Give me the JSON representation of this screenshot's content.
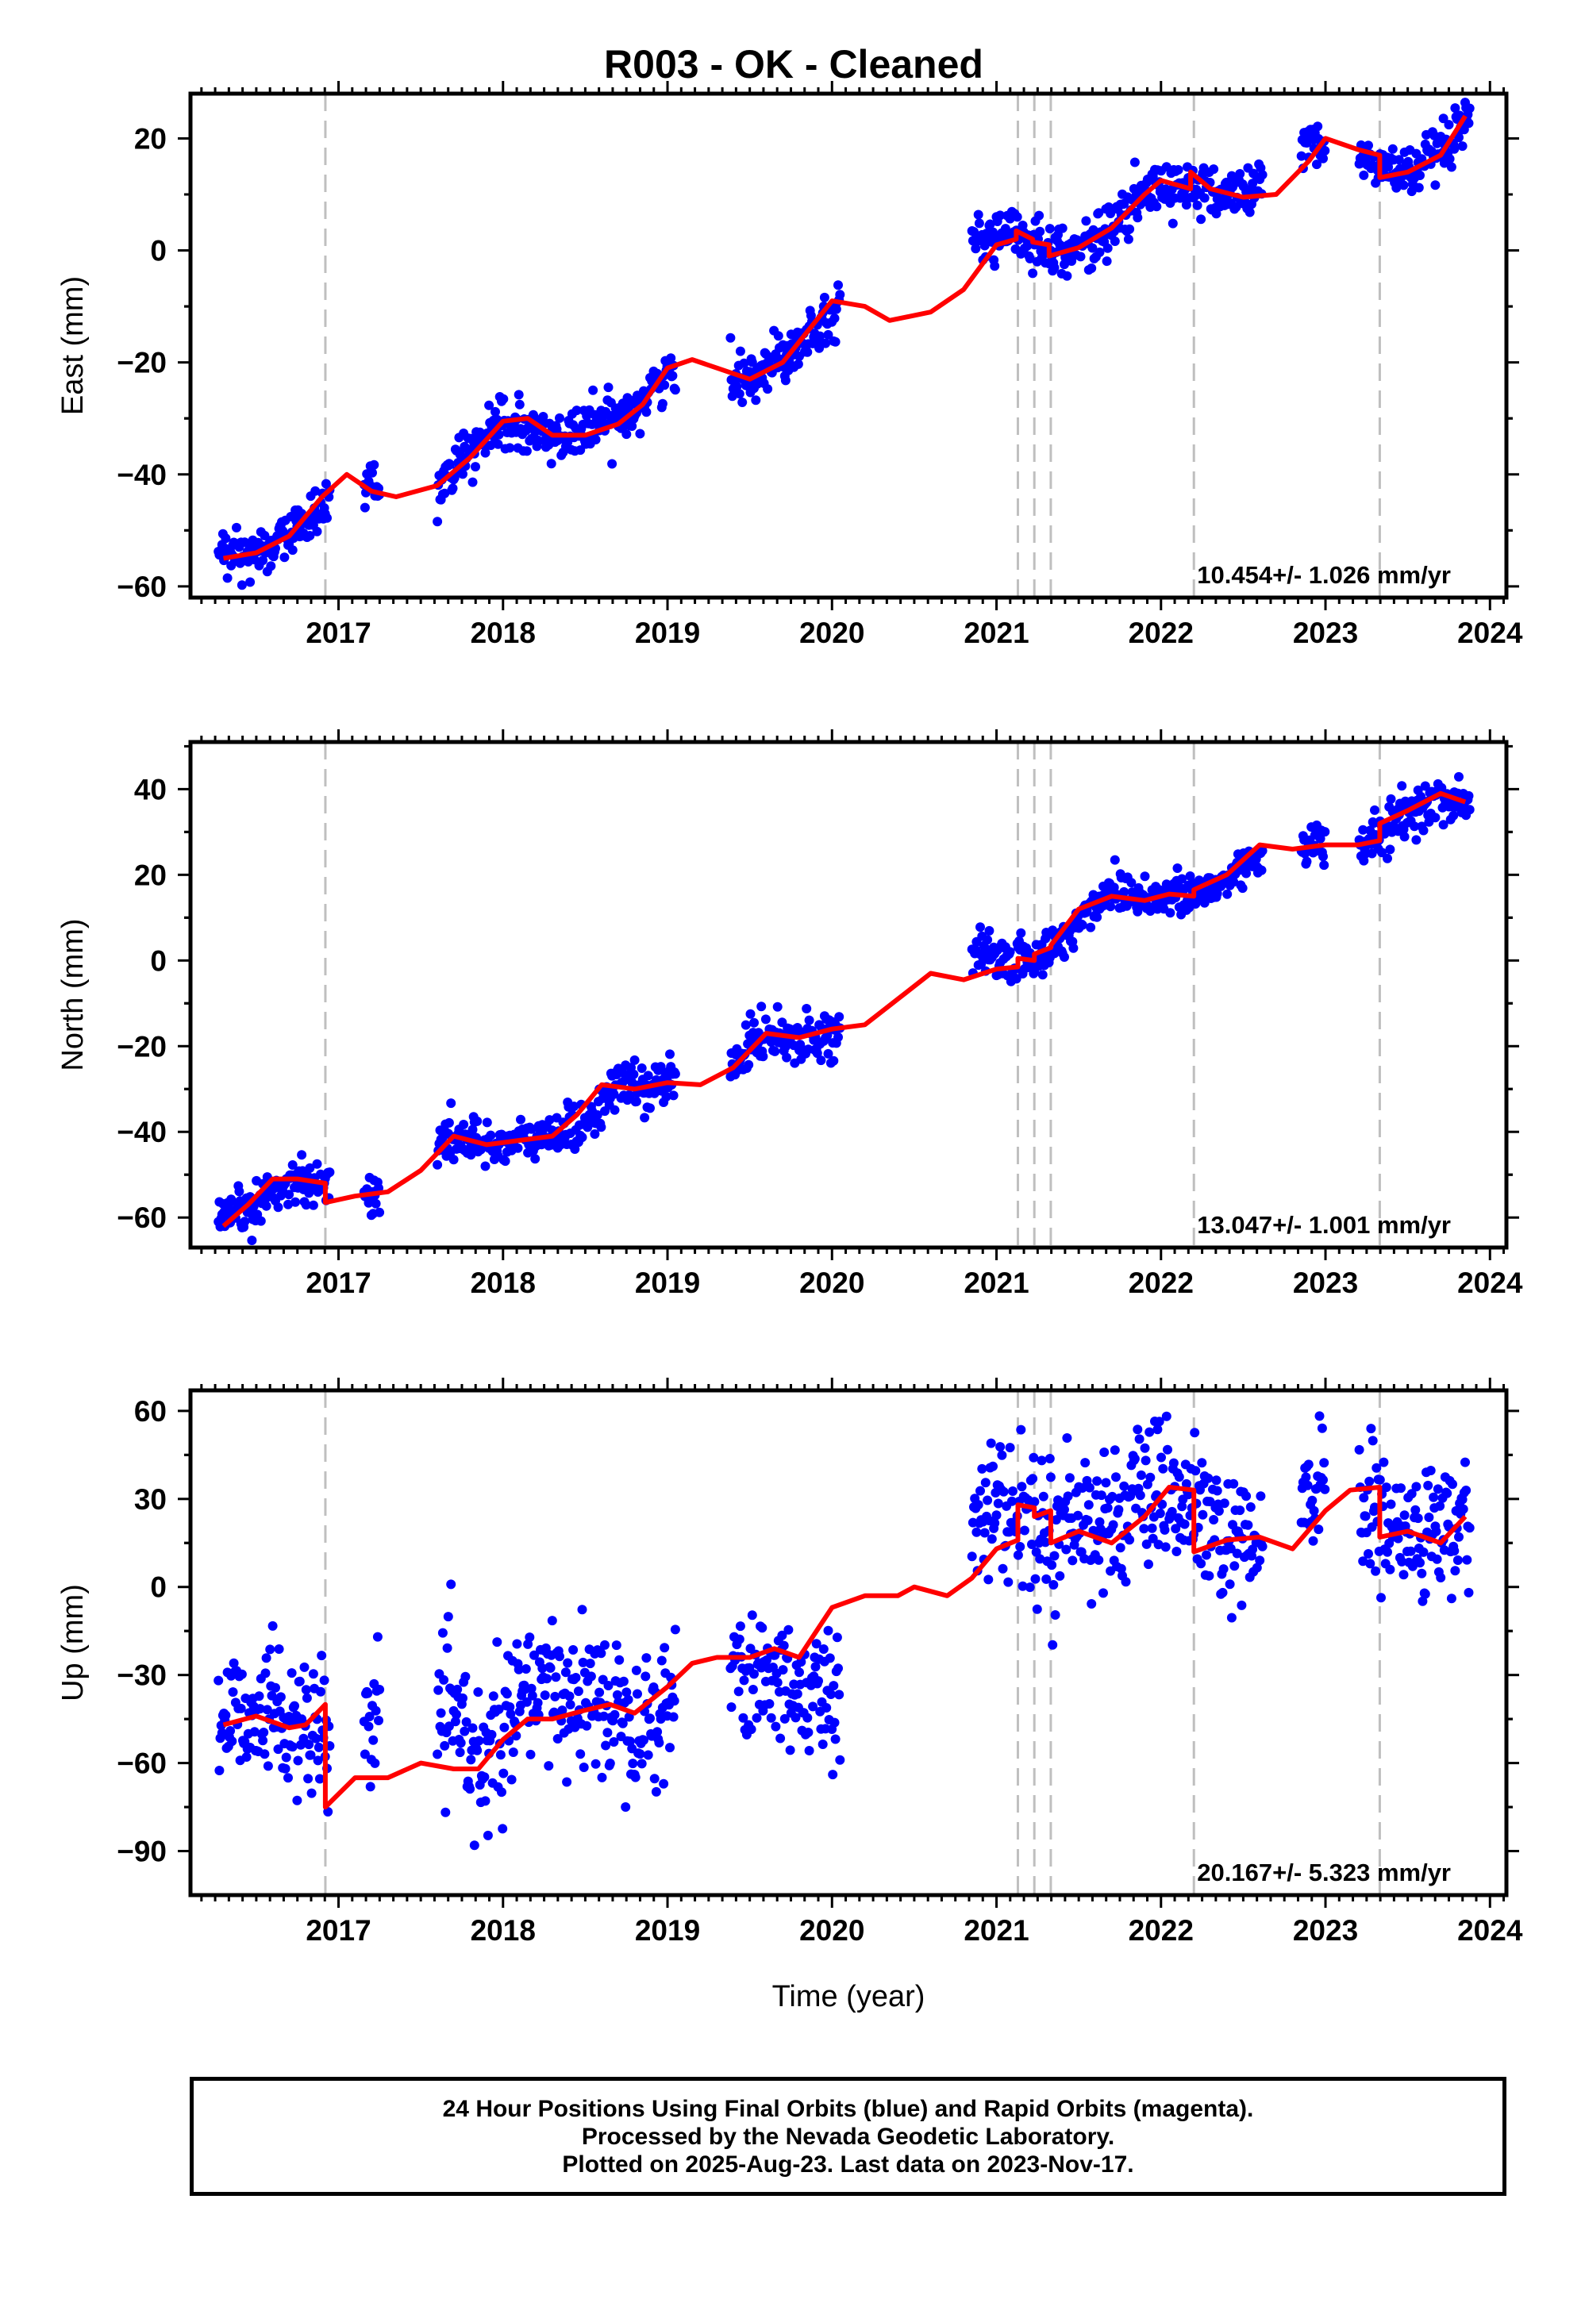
{
  "title": "R003  - OK - Cleaned",
  "colors": {
    "final_orbits": "#0000ff",
    "model": "#ff0000",
    "breaks": "#bfbfbf",
    "frame": "#000000"
  },
  "chart_data": [
    {
      "type": "scatter",
      "panel": "east",
      "ylabel": "East (mm)",
      "xlim": [
        2016.1,
        2024.1
      ],
      "ylim": [
        -62,
        28
      ],
      "yticks": [
        -60,
        -40,
        -20,
        0,
        20
      ],
      "xticks": [
        2017,
        2018,
        2019,
        2020,
        2021,
        2022,
        2023,
        2024
      ],
      "rate_label": "10.454+/- 1.026 mm/yr",
      "scatter_sigma": 2.2,
      "series": [
        {
          "role": "final_orbits",
          "color": "#0000ff",
          "x": [
            2016.3,
            2016.5,
            2016.7,
            2016.9,
            2017.2,
            2017.6,
            2017.8,
            2018.0,
            2018.2,
            2018.4,
            2018.6,
            2018.8,
            2019.0,
            2019.4,
            2019.6,
            2019.8,
            2020.0,
            2020.9,
            2021.1,
            2021.3,
            2021.5,
            2021.7,
            2021.9,
            2022.1,
            2022.3,
            2022.5,
            2022.7,
            2022.9,
            2023.3,
            2023.5,
            2023.7,
            2023.9
          ],
          "y": [
            -55,
            -54,
            -51,
            -46,
            -41,
            -43,
            -36,
            -31,
            -33,
            -33,
            -31,
            -28,
            -22,
            -23,
            -21,
            -16,
            -11,
            2,
            3,
            1,
            0,
            4,
            10,
            12,
            10,
            10,
            13,
            20,
            15,
            14,
            17,
            24
          ]
        },
        {
          "role": "model",
          "color": "#ff0000",
          "x": [
            2016.3,
            2016.5,
            2016.7,
            2016.9,
            2017.05,
            2017.2,
            2017.35,
            2017.6,
            2017.8,
            2018.0,
            2018.15,
            2018.3,
            2018.5,
            2018.7,
            2018.85,
            2019.0,
            2019.15,
            2019.3,
            2019.5,
            2019.7,
            2019.85,
            2020.0,
            2020.2,
            2020.35,
            2020.6,
            2020.8,
            2021.0,
            2021.12,
            2021.12,
            2021.22,
            2021.22,
            2021.32,
            2021.32,
            2021.5,
            2021.7,
            2021.9,
            2022.0,
            2022.18,
            2022.18,
            2022.3,
            2022.5,
            2022.7,
            2022.9,
            2023.0,
            2023.2,
            2023.33,
            2023.33,
            2023.5,
            2023.7,
            2023.85
          ],
          "y": [
            -55,
            -54,
            -51,
            -44,
            -40,
            -43,
            -44,
            -42,
            -37,
            -30.5,
            -30,
            -33,
            -33,
            -31,
            -27.5,
            -21,
            -19.5,
            -21,
            -23,
            -20,
            -14.5,
            -9,
            -10,
            -12.5,
            -11,
            -7,
            1,
            2,
            3.5,
            2,
            1.5,
            1,
            -1,
            0.5,
            4,
            10,
            12.5,
            11,
            14,
            11,
            9.5,
            10,
            16,
            20,
            18,
            17,
            13,
            14,
            17,
            24
          ]
        }
      ],
      "breaks": [
        2016.92,
        2021.13,
        2021.23,
        2021.33,
        2022.2,
        2023.33
      ]
    },
    {
      "type": "scatter",
      "panel": "north",
      "ylabel": "North (mm)",
      "xlim": [
        2016.1,
        2024.1
      ],
      "ylim": [
        -67,
        51
      ],
      "yticks": [
        -60,
        -40,
        -20,
        0,
        20,
        40
      ],
      "xticks": [
        2017,
        2018,
        2019,
        2020,
        2021,
        2022,
        2023,
        2024
      ],
      "rate_label": "13.047+/- 1.001 mm/yr",
      "scatter_sigma": 2.6,
      "series": [
        {
          "role": "final_orbits",
          "color": "#0000ff",
          "x": [
            2016.3,
            2016.5,
            2016.7,
            2016.9,
            2017.2,
            2017.7,
            2017.9,
            2018.1,
            2018.3,
            2018.5,
            2018.7,
            2018.9,
            2019.4,
            2019.6,
            2019.8,
            2020.0,
            2020.9,
            2021.1,
            2021.3,
            2021.5,
            2021.7,
            2021.9,
            2022.1,
            2022.3,
            2022.5,
            2022.7,
            2022.9,
            2023.2,
            2023.5,
            2023.7,
            2023.9
          ],
          "y": [
            -61,
            -57,
            -51,
            -52,
            -55,
            -41,
            -43,
            -42,
            -41,
            -38,
            -29,
            -30,
            -23,
            -17,
            -18,
            -17,
            1,
            0,
            1,
            9,
            17,
            15,
            15,
            16,
            22,
            27,
            27,
            26,
            34,
            38,
            36
          ]
        },
        {
          "role": "model",
          "color": "#ff0000",
          "x": [
            2016.3,
            2016.45,
            2016.6,
            2016.75,
            2016.92,
            2016.92,
            2017.1,
            2017.3,
            2017.5,
            2017.7,
            2017.9,
            2018.1,
            2018.3,
            2018.45,
            2018.6,
            2018.8,
            2019.0,
            2019.2,
            2019.4,
            2019.6,
            2019.8,
            2020.0,
            2020.2,
            2020.4,
            2020.6,
            2020.8,
            2021.0,
            2021.13,
            2021.13,
            2021.23,
            2021.23,
            2021.33,
            2021.33,
            2021.5,
            2021.7,
            2021.9,
            2022.05,
            2022.2,
            2022.2,
            2022.4,
            2022.6,
            2022.8,
            2023.0,
            2023.2,
            2023.33,
            2023.33,
            2023.5,
            2023.7,
            2023.85
          ],
          "y": [
            -62,
            -57,
            -51,
            -51,
            -52,
            -56.5,
            -55,
            -54,
            -49,
            -41,
            -43,
            -42,
            -41,
            -36,
            -29,
            -30,
            -28.5,
            -29,
            -25,
            -17,
            -18,
            -16,
            -15,
            -9,
            -3,
            -4.5,
            -2,
            -1.5,
            0.5,
            0,
            1.5,
            3,
            3.5,
            12,
            15,
            14,
            15.5,
            15,
            16.5,
            20,
            27,
            26,
            27,
            27,
            28,
            32,
            35,
            39,
            37
          ]
        }
      ],
      "breaks": [
        2016.92,
        2021.13,
        2021.23,
        2021.33,
        2022.2,
        2023.33
      ]
    },
    {
      "type": "scatter",
      "panel": "up",
      "ylabel": "Up (mm)",
      "xlabel": "Time (year)",
      "xlim": [
        2016.1,
        2024.1
      ],
      "ylim": [
        -105,
        67
      ],
      "yticks": [
        -90,
        -60,
        -30,
        0,
        30,
        60
      ],
      "xticks": [
        2017,
        2018,
        2019,
        2020,
        2021,
        2022,
        2023,
        2024
      ],
      "rate_label": "20.167+/- 5.323 mm/yr",
      "scatter_sigma": 12,
      "series": [
        {
          "role": "final_orbits",
          "color": "#0000ff",
          "x": [
            2016.3,
            2016.5,
            2016.7,
            2016.9,
            2017.2,
            2017.7,
            2017.9,
            2018.1,
            2018.3,
            2018.5,
            2018.7,
            2018.9,
            2019.4,
            2019.6,
            2019.8,
            2020.0,
            2020.9,
            2021.1,
            2021.3,
            2021.5,
            2021.7,
            2021.9,
            2022.1,
            2022.3,
            2022.5,
            2022.7,
            2022.9,
            2023.3,
            2023.5,
            2023.7,
            2023.9
          ],
          "y": [
            -45,
            -40,
            -45,
            -55,
            -45,
            -45,
            -60,
            -40,
            -35,
            -38,
            -40,
            -45,
            -25,
            -30,
            -35,
            -40,
            30,
            25,
            20,
            25,
            22,
            30,
            30,
            20,
            10,
            15,
            35,
            25,
            15,
            20,
            20
          ]
        },
        {
          "role": "model",
          "color": "#ff0000",
          "x": [
            2016.3,
            2016.5,
            2016.7,
            2016.8,
            2016.92,
            2016.92,
            2017.1,
            2017.3,
            2017.5,
            2017.7,
            2017.85,
            2018.0,
            2018.15,
            2018.3,
            2018.5,
            2018.65,
            2018.8,
            2019.0,
            2019.15,
            2019.3,
            2019.5,
            2019.65,
            2019.8,
            2020.0,
            2020.2,
            2020.4,
            2020.5,
            2020.7,
            2020.85,
            2021.0,
            2021.13,
            2021.13,
            2021.23,
            2021.23,
            2021.33,
            2021.33,
            2021.5,
            2021.7,
            2021.9,
            2022.05,
            2022.2,
            2022.2,
            2022.4,
            2022.6,
            2022.8,
            2023.0,
            2023.15,
            2023.33,
            2023.33,
            2023.5,
            2023.7,
            2023.85
          ],
          "y": [
            -47,
            -44,
            -48,
            -47,
            -40,
            -75,
            -65,
            -65,
            -60,
            -62,
            -62,
            -52,
            -45,
            -45,
            -42,
            -40,
            -43,
            -34,
            -26,
            -24,
            -24,
            -21,
            -24,
            -7,
            -3,
            -3,
            0,
            -3,
            3,
            13,
            16,
            28,
            27,
            24,
            26,
            15,
            19,
            15,
            24,
            34,
            33,
            12,
            16,
            17,
            13,
            26,
            33,
            34,
            17,
            19,
            15,
            24
          ]
        }
      ],
      "breaks": [
        2016.92,
        2021.13,
        2021.23,
        2021.33,
        2022.2,
        2023.33
      ]
    }
  ],
  "caption": {
    "line1": "24 Hour Positions Using Final Orbits (blue) and Rapid Orbits (magenta).",
    "line2": "Processed by the Nevada Geodetic Laboratory.",
    "line3": "Plotted on 2025-Aug-23. Last data on 2023-Nov-17."
  }
}
